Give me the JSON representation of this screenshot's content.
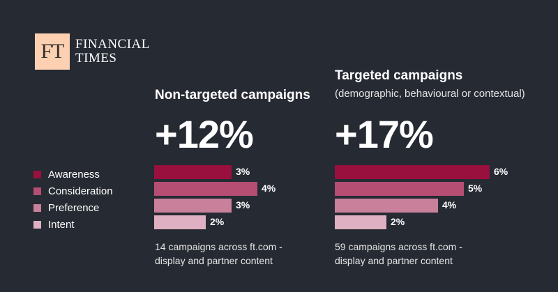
{
  "logo": {
    "mark": "FT",
    "line1": "FINANCIAL",
    "line2": "TIMES"
  },
  "colors": {
    "background": "#262a33",
    "awareness": "#990f3d",
    "consideration": "#b54e72",
    "preference": "#c9809a",
    "intent": "#dfb0c1"
  },
  "legend": [
    {
      "label": "Awareness",
      "color": "#990f3d"
    },
    {
      "label": "Consideration",
      "color": "#b54e72"
    },
    {
      "label": "Preference",
      "color": "#c9809a"
    },
    {
      "label": "Intent",
      "color": "#dfb0c1"
    }
  ],
  "panels": [
    {
      "title": "Non-targeted campaigns",
      "subtitle": "",
      "headline": "+12%",
      "footnote_line1": "14 campaigns across ft.com -",
      "footnote_line2": "display and partner content"
    },
    {
      "title": "Targeted campaigns",
      "subtitle": "(demographic, behavioural or contextual)",
      "headline": "+17%",
      "footnote_line1": "59 campaigns across ft.com -",
      "footnote_line2": "display and partner content"
    }
  ],
  "chart_data": [
    {
      "type": "bar",
      "title": "Non-targeted campaigns",
      "categories": [
        "Awareness",
        "Consideration",
        "Preference",
        "Intent"
      ],
      "values": [
        3,
        4,
        3,
        2
      ],
      "labels": [
        "3%",
        "4%",
        "3%",
        "2%"
      ],
      "unit": "%"
    },
    {
      "type": "bar",
      "title": "Targeted campaigns",
      "categories": [
        "Awareness",
        "Consideration",
        "Preference",
        "Intent"
      ],
      "values": [
        6,
        5,
        4,
        2
      ],
      "labels": [
        "6%",
        "5%",
        "4%",
        "2%"
      ],
      "unit": "%"
    }
  ]
}
